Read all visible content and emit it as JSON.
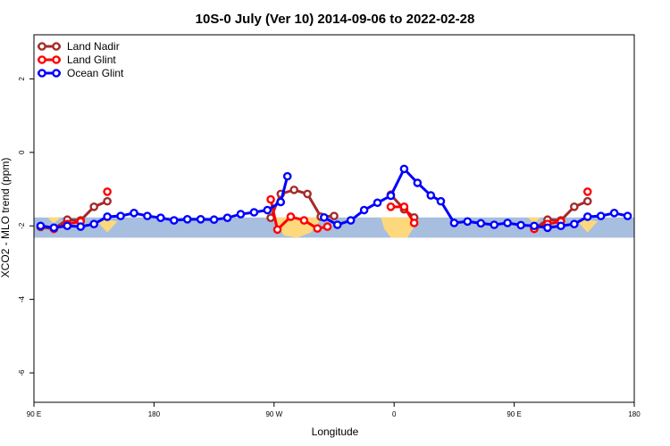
{
  "chart_data": {
    "type": "line",
    "title": "10S-0 July (Ver 10)   2014-09-06 to 2022-02-28",
    "xlabel": "Longitude",
    "ylabel": "XCO2 - MLO trend (ppm)",
    "xlim": [
      90,
      450
    ],
    "ylim": [
      -6.8,
      3.2
    ],
    "x_ticks": [
      {
        "value": 90,
        "label": "90 E"
      },
      {
        "value": 162,
        "label": "180"
      },
      {
        "value": 234,
        "label": "90 W"
      },
      {
        "value": 306,
        "label": "0"
      },
      {
        "value": 378,
        "label": "90 E"
      },
      {
        "value": 450,
        "label": "180"
      }
    ],
    "y_ticks": [
      {
        "value": 2,
        "label": "2"
      },
      {
        "value": 0,
        "label": "0"
      },
      {
        "value": -2,
        "label": "-2"
      },
      {
        "value": -4,
        "label": "-4"
      },
      {
        "value": -6,
        "label": "-6"
      }
    ],
    "legend_position": "top-left",
    "grid": false,
    "map_band": {
      "y_range": [
        -2.32,
        -1.77
      ],
      "ocean_color": "#a7bede",
      "land_color": "#fed87c"
    },
    "series": [
      {
        "name": "Land Nadir",
        "color": "#a52a2a",
        "segments": [
          [
            [
              94,
              -2.03
            ],
            [
              102,
              -2.08
            ],
            [
              110,
              -1.83
            ],
            [
              118,
              -1.85
            ],
            [
              126,
              -1.48
            ],
            [
              134,
              -1.33
            ]
          ],
          [
            [
              232,
              -1.78
            ],
            [
              238,
              -1.13
            ],
            [
              246,
              -1.02
            ],
            [
              254,
              -1.13
            ],
            [
              262,
              -1.75
            ],
            [
              270,
              -1.73
            ]
          ],
          [
            [
              304,
              -1.15
            ],
            [
              312,
              -1.55
            ],
            [
              318,
              -1.77
            ]
          ],
          [
            [
              390,
              -2.08
            ],
            [
              398,
              -1.83
            ],
            [
              406,
              -1.85
            ],
            [
              414,
              -1.48
            ],
            [
              422,
              -1.33
            ]
          ]
        ]
      },
      {
        "name": "Land Glint",
        "color": "#ff0000",
        "segments": [
          [
            [
              102,
              -2.08
            ],
            [
              110,
              -1.95
            ],
            [
              118,
              -1.88
            ]
          ],
          [
            [
              134,
              -1.07
            ]
          ],
          [
            [
              232,
              -1.28
            ],
            [
              236,
              -2.1
            ],
            [
              244,
              -1.75
            ],
            [
              252,
              -1.85
            ],
            [
              260,
              -2.07
            ],
            [
              266,
              -2.02
            ]
          ],
          [
            [
              304,
              -1.48
            ],
            [
              312,
              -1.48
            ],
            [
              318,
              -1.92
            ]
          ],
          [
            [
              390,
              -2.08
            ],
            [
              398,
              -1.95
            ],
            [
              406,
              -1.88
            ]
          ],
          [
            [
              422,
              -1.07
            ]
          ]
        ]
      },
      {
        "name": "Ocean Glint",
        "color": "#0000ff",
        "segments": [
          [
            [
              94,
              -2.0
            ],
            [
              102,
              -2.05
            ],
            [
              110,
              -2.0
            ],
            [
              118,
              -2.02
            ],
            [
              126,
              -1.95
            ],
            [
              134,
              -1.75
            ],
            [
              142,
              -1.73
            ],
            [
              150,
              -1.65
            ],
            [
              158,
              -1.73
            ],
            [
              166,
              -1.78
            ],
            [
              174,
              -1.85
            ],
            [
              182,
              -1.82
            ],
            [
              190,
              -1.82
            ],
            [
              198,
              -1.83
            ],
            [
              206,
              -1.78
            ],
            [
              214,
              -1.68
            ],
            [
              222,
              -1.63
            ],
            [
              230,
              -1.57
            ],
            [
              238,
              -1.35
            ],
            [
              242,
              -0.65
            ]
          ],
          [
            [
              264,
              -1.77
            ],
            [
              272,
              -1.97
            ],
            [
              280,
              -1.85
            ],
            [
              288,
              -1.57
            ],
            [
              296,
              -1.37
            ],
            [
              304,
              -1.18
            ],
            [
              312,
              -0.45
            ],
            [
              320,
              -0.83
            ],
            [
              328,
              -1.17
            ],
            [
              334,
              -1.33
            ],
            [
              342,
              -1.92
            ],
            [
              350,
              -1.88
            ],
            [
              358,
              -1.93
            ],
            [
              366,
              -1.97
            ],
            [
              374,
              -1.92
            ],
            [
              382,
              -1.98
            ],
            [
              390,
              -2.0
            ],
            [
              398,
              -2.05
            ],
            [
              406,
              -2.0
            ],
            [
              414,
              -1.95
            ],
            [
              422,
              -1.75
            ],
            [
              430,
              -1.73
            ],
            [
              438,
              -1.65
            ],
            [
              446,
              -1.73
            ]
          ]
        ]
      }
    ]
  }
}
